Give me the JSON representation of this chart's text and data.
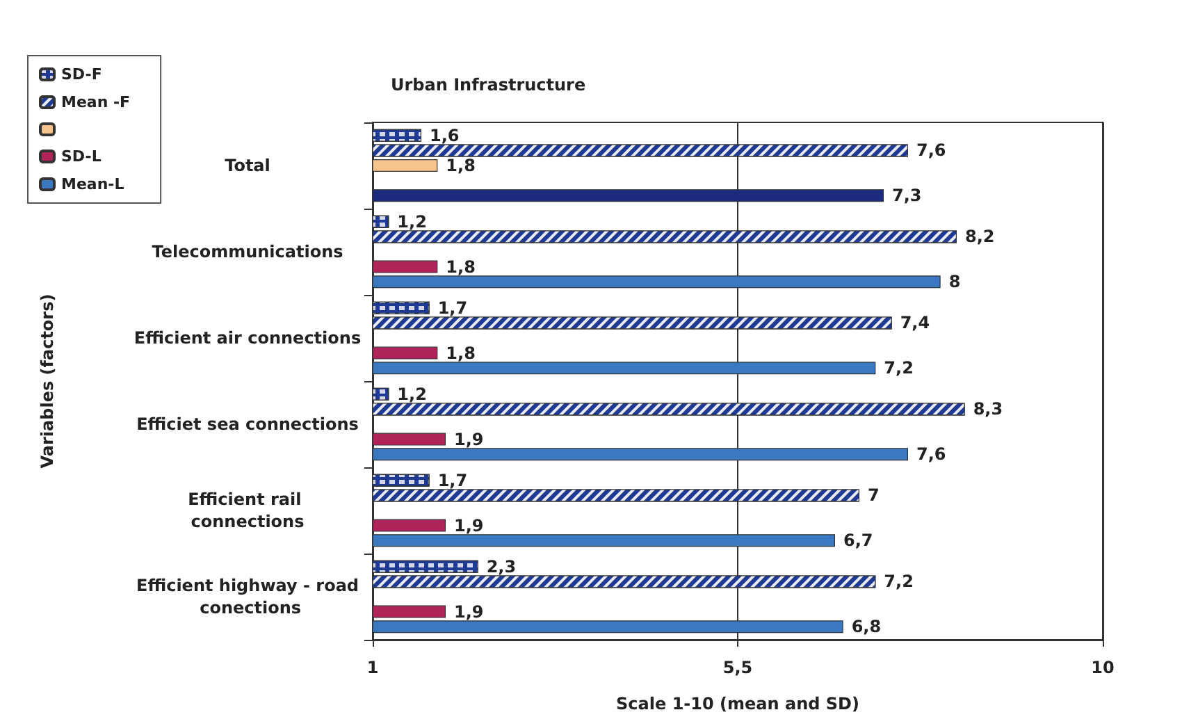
{
  "chart_data": {
    "type": "bar",
    "orientation": "horizontal",
    "title": "Urban Infrastructure",
    "xlabel": "Scale 1-10 (mean and SD)",
    "ylabel": "Variables (factors)",
    "categories": [
      "Total",
      "Telecommunications",
      "Efficient air connections",
      "Efficiet sea connections",
      "Efficient rail connections",
      "Efficient highway - road conections"
    ],
    "series": [
      {
        "name": "SD-F",
        "color": "#1f3a93",
        "values": [
          1.6,
          1.2,
          1.7,
          1.2,
          1.7,
          2.3
        ],
        "value_labels": [
          "1,6",
          "1,2",
          "1,7",
          "1,2",
          "1,7",
          "2,3"
        ]
      },
      {
        "name": "Mean -F",
        "color": "#1f3a93",
        "values": [
          7.6,
          8.2,
          7.4,
          8.3,
          7,
          7.2
        ],
        "value_labels": [
          "7,6",
          "8,2",
          "7,4",
          "8,3",
          "7",
          "7,2"
        ]
      },
      {
        "color": "#f7c48e",
        "values": [
          1.8,
          null,
          null,
          null,
          null,
          null
        ],
        "value_labels": [
          "1,8",
          null,
          null,
          null,
          null,
          null
        ]
      },
      {
        "name": "SD-L",
        "color": "#b0245a",
        "values": [
          null,
          1.8,
          1.8,
          1.9,
          1.9,
          1.9
        ],
        "value_labels": [
          null,
          "1,8",
          "1,8",
          "1,9",
          "1,9",
          "1,9"
        ]
      },
      {
        "name": "Mean-L",
        "color": "#3a78c2",
        "colors": [
          "#1c2a80",
          "#3a78c2",
          "#3a78c2",
          "#3a78c2",
          "#3a78c2",
          "#3a78c2"
        ],
        "values": [
          7.3,
          8,
          7.2,
          7.6,
          6.7,
          6.8
        ],
        "value_labels": [
          "7,3",
          "8",
          "7,2",
          "7,6",
          "6,7",
          "6,8"
        ]
      }
    ],
    "xlim": [
      1,
      10
    ],
    "xticks": [
      1,
      {
        "value": 5.5,
        "label": "5,5"
      },
      10
    ],
    "grid": "x",
    "legend": "top left"
  }
}
